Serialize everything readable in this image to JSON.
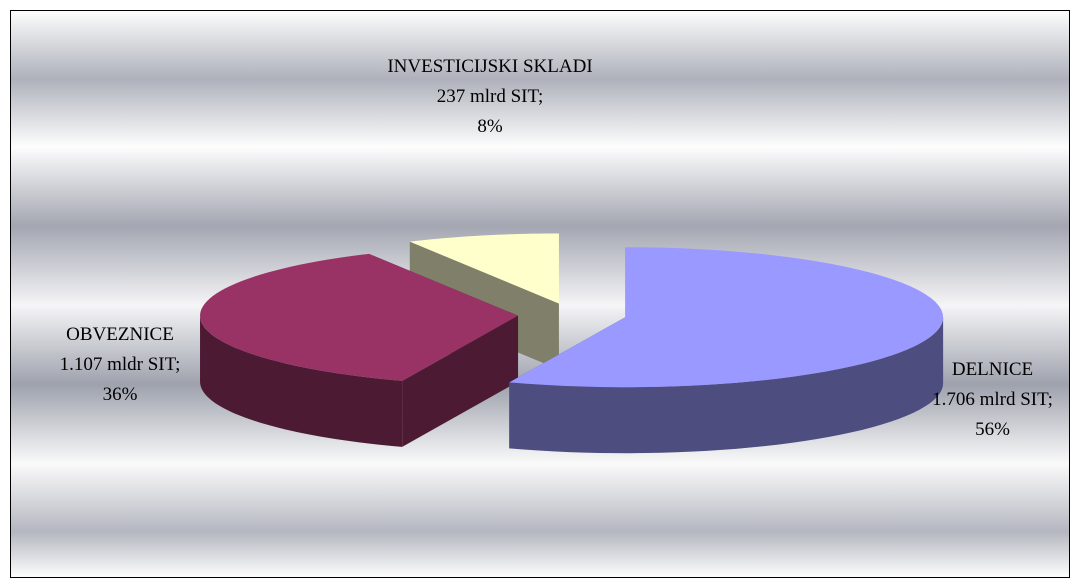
{
  "chart_data": {
    "type": "pie3d",
    "categories": [
      "DELNICE",
      "OBVEZNICE",
      "INVESTICIJSKI SKLADI"
    ],
    "values": [
      1706,
      1107,
      237
    ],
    "value_labels": [
      "1.706 mlrd SIT;",
      "1.107 mldr SIT;",
      "237 mlrd SIT;"
    ],
    "percent_labels": [
      "56%",
      "36%",
      "8%"
    ],
    "colors": [
      "#9999ff",
      "#993366",
      "#ffffcc"
    ],
    "side_colors": [
      "#4d4d80",
      "#4d1a33",
      "#80806a"
    ]
  }
}
